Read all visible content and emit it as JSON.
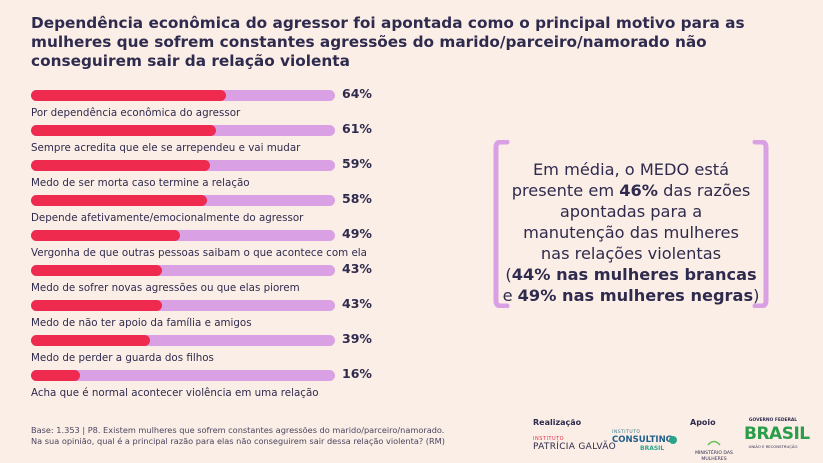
{
  "title": "Dependência econômica do agressor foi apontada como o principal motivo para as mulheres que sofrem constantes agressões do marido/parceiro/namorado não conseguirem sair da relação violenta",
  "chart_data": {
    "type": "bar",
    "orientation": "horizontal",
    "categories": [
      "Por dependência econômica do agressor",
      "Sempre acredita que ele se arrependeu e vai mudar",
      "Medo de ser morta caso termine a relação",
      "Depende afetivamente/emocionalmente do agressor",
      "Vergonha de que outras pessoas saibam o que acontece com ela",
      "Medo de sofrer novas agressões ou que elas piorem",
      "Medo de não ter apoio da família e amigos",
      "Medo de perder a guarda dos filhos",
      "Acha que é normal acontecer violência em uma relação"
    ],
    "values": [
      64,
      61,
      59,
      58,
      49,
      43,
      43,
      39,
      16
    ],
    "value_labels": [
      "64%",
      "61%",
      "59%",
      "58%",
      "49%",
      "43%",
      "43%",
      "39%",
      "16%"
    ],
    "xlim": [
      0,
      100
    ],
    "fill_color": "#ee2a4f",
    "track_color": "#d9a1e3"
  },
  "callout": {
    "line1": "Em média, o MEDO está",
    "line2_pre": "presente em ",
    "line2_bold": "46%",
    "line2_post": " das razões",
    "line3": "apontadas para a",
    "line4": "manutenção das mulheres",
    "line5": "nas relações violentas",
    "line6_pre": "(",
    "line6_bold": "44% nas mulheres brancas",
    "line7_pre": "e ",
    "line7_bold": "49% nas mulheres negras",
    "line7_post": ")",
    "bracket_color": "#d9a1e3"
  },
  "footnote": {
    "line1": "Base: 1.353 | P8. Existem mulheres que sofrem constantes agressões do marido/parceiro/namorado.",
    "line2": "Na sua opinião, qual é a principal razão para elas não conseguirem sair dessa relação violenta? (RM)"
  },
  "footer": {
    "realizacao_label": "Realização",
    "apoio_label": "Apoio",
    "logo_pg_small": "INSTITUTO",
    "logo_pg_big": "PATRÍCIA GALVÃO",
    "logo_consulting_small": "INSTITUTO",
    "logo_consulting_big": "CONSULTING",
    "logo_consulting_sub": "BRASIL",
    "logo_ministerio_line1": "MINISTÉRIO DAS",
    "logo_ministerio_line2": "MULHERES",
    "logo_gov_top": "GOVERNO FEDERAL",
    "logo_gov_big": "BRASIL",
    "logo_gov_sub": "UNIÃO E RECONSTRUÇÃO"
  }
}
